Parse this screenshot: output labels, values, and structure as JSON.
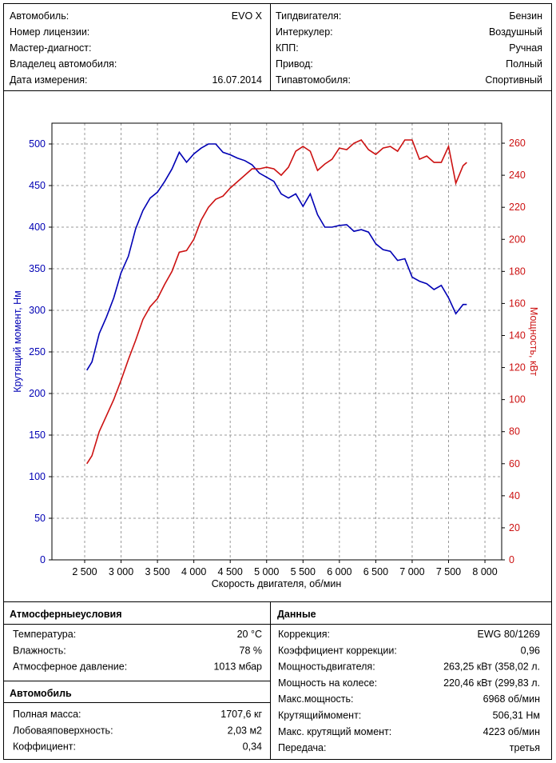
{
  "header": {
    "left": [
      {
        "label": "Автомобиль:",
        "value": "EVO  X"
      },
      {
        "label": "Номер лицензии:"
      },
      {
        "label": "Мастер-диагност:"
      },
      {
        "label": "Владелец автомобиля:"
      },
      {
        "label": "Дата измерения:",
        "value": "16.07.2014"
      }
    ],
    "right": [
      {
        "label": "Типдвигателя:",
        "value": "Бензин"
      },
      {
        "label": "Интеркулер:",
        "value": "Воздушный"
      },
      {
        "label": "КПП:",
        "value": "Ручная"
      },
      {
        "label": "Привод:",
        "value": "Полный"
      },
      {
        "label": "Типавтомобиля:",
        "value": "Спортивный"
      }
    ]
  },
  "chart_data": {
    "type": "line",
    "x_label": "Скорость двигателя, об/мин",
    "y_label": "Крутящий момент, Нм",
    "y2_label": "Мощность, кВт",
    "grid": true,
    "x": [
      2530,
      2600,
      2700,
      2800,
      2900,
      3000,
      3100,
      3200,
      3300,
      3400,
      3500,
      3600,
      3700,
      3800,
      3900,
      4000,
      4100,
      4200,
      4300,
      4400,
      4500,
      4600,
      4700,
      4800,
      4900,
      5000,
      5100,
      5200,
      5300,
      5400,
      5500,
      5600,
      5700,
      5800,
      5900,
      6000,
      6100,
      6200,
      6300,
      6400,
      6500,
      6600,
      6700,
      6800,
      6900,
      7000,
      7100,
      7200,
      7300,
      7400,
      7500,
      7600,
      7700,
      7750
    ],
    "series": [
      {
        "name": "Крутящий момент",
        "color": "#0000b4",
        "axis": "y",
        "values": [
          228,
          238,
          272,
          292,
          315,
          345,
          365,
          398,
          420,
          435,
          442,
          455,
          470,
          490,
          478,
          488,
          495,
          500,
          500,
          490,
          487,
          483,
          480,
          475,
          465,
          460,
          455,
          440,
          435,
          440,
          425,
          440,
          415,
          400,
          400,
          402,
          403,
          395,
          397,
          394,
          380,
          373,
          371,
          360,
          362,
          340,
          335,
          332,
          325,
          330,
          315,
          296,
          307,
          307
        ]
      },
      {
        "name": "Мощность",
        "color": "#cc1111",
        "axis": "y2",
        "values": [
          60,
          65,
          80,
          90,
          100,
          112,
          125,
          137,
          150,
          158,
          163,
          172,
          180,
          192,
          193,
          200,
          212,
          220,
          225,
          227,
          232,
          236,
          240,
          244,
          244,
          245,
          244,
          240,
          245,
          255,
          258,
          255,
          243,
          247,
          250,
          257,
          256,
          260,
          262,
          256,
          253,
          257,
          258,
          255,
          262,
          262,
          250,
          252,
          248,
          248,
          258,
          235,
          246,
          248
        ]
      }
    ],
    "xlim": [
      2050,
      8230
    ],
    "xticks": [
      {
        "value": 2500,
        "label": "2 500"
      },
      {
        "value": 3000,
        "label": "3 000"
      },
      {
        "value": 3500,
        "label": "3 500"
      },
      {
        "value": 4000,
        "label": "4 000"
      },
      {
        "value": 4500,
        "label": "4 500"
      },
      {
        "value": 5000,
        "label": "5 000"
      },
      {
        "value": 5500,
        "label": "5 500"
      },
      {
        "value": 6000,
        "label": "6 000"
      },
      {
        "value": 6500,
        "label": "6 500"
      },
      {
        "value": 7000,
        "label": "7 000"
      },
      {
        "value": 7500,
        "label": "7 500"
      },
      {
        "value": 8000,
        "label": "8 000"
      }
    ],
    "ylim": [
      0,
      525
    ],
    "yticks": [
      0,
      50,
      100,
      150,
      200,
      250,
      300,
      350,
      400,
      450,
      500
    ],
    "y2lim": [
      0,
      272.5
    ],
    "y2ticks": [
      0,
      20,
      40,
      60,
      80,
      100,
      120,
      140,
      160,
      180,
      200,
      220,
      240,
      260
    ]
  },
  "atmosphere": {
    "title": "Атмосферныеусловия",
    "rows": [
      [
        "Температура:",
        "20 °C"
      ],
      [
        "Влажность:",
        "78 %"
      ],
      [
        "Атмосферное давление:",
        "1013 мбар"
      ]
    ]
  },
  "car": {
    "title": "Автомобиль",
    "rows": [
      [
        "Полная масса:",
        "1707,6 кг"
      ],
      [
        "Лобоваяповерхность:",
        "2,03 м2"
      ],
      [
        "Коффициент:",
        "0,34"
      ]
    ]
  },
  "data": {
    "title": "Данные",
    "rows": [
      [
        "Коррекция:",
        "EWG 80/1269"
      ],
      [
        "Коэффициент коррекции:",
        "0,96"
      ],
      [
        "Мощностьдвигателя:",
        "263,25 кВт (358,02 л."
      ],
      [
        "Мощность на колесе:",
        "220,46 кВт (299,83 л."
      ],
      [
        "Макс.мощность:",
        "6968 об/мин"
      ],
      [
        "Крутящиймомент:",
        "506,31 Нм"
      ],
      [
        "Макс. крутящий момент:",
        "4223 об/мин"
      ],
      [
        "Передача:",
        "третья"
      ]
    ]
  }
}
